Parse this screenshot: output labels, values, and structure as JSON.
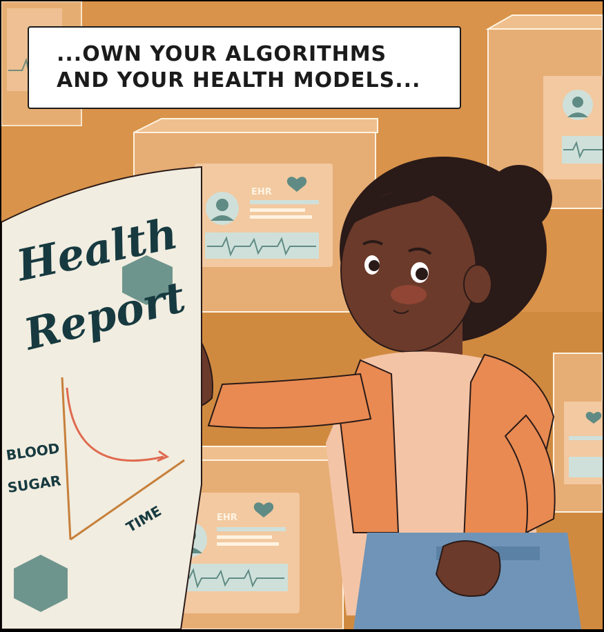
{
  "caption": {
    "line1": "...OWN YOUR ALGORITHMS",
    "line2": "AND YOUR HEALTH MODELS..."
  },
  "report": {
    "title_line1": "Health",
    "title_line2": "Report",
    "y_label_line1": "BLOOD",
    "y_label_line2": "SUGAR",
    "x_label": "TIME"
  },
  "ehr_cards": [
    {
      "label": "EHR"
    },
    {
      "label": "EHR"
    }
  ],
  "colors": {
    "background": "#d9934a",
    "card": "#f2c9a0",
    "teal_accent": "#5f8b84",
    "jacket": "#e88a52",
    "skin": "#6b3a2a",
    "hair": "#2a1a18",
    "paper": "#f1ede0",
    "curve": "#e06a50"
  }
}
